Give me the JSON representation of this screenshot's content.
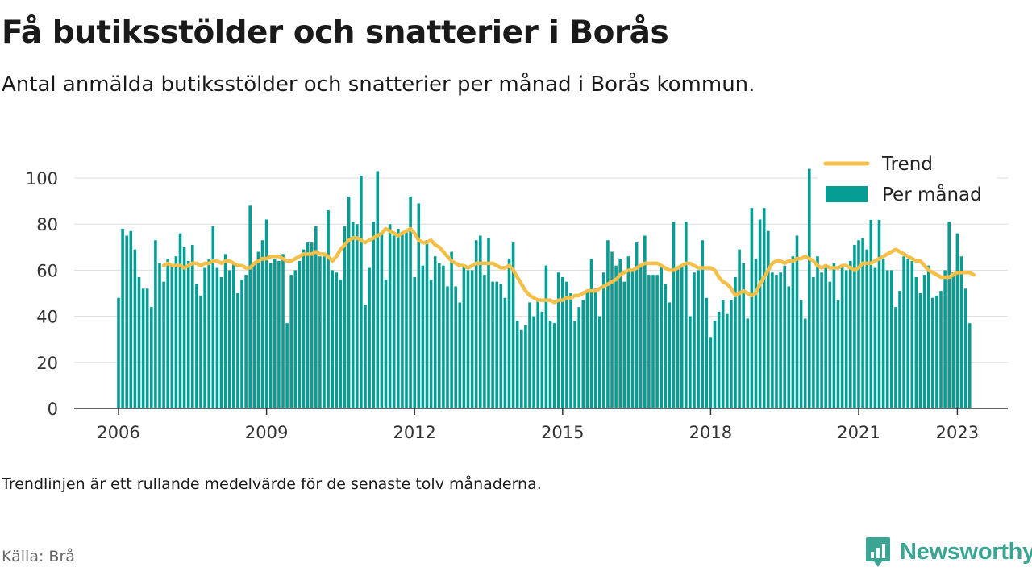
{
  "header": {
    "title": "Få butiksstölder och snatterier i Borås",
    "subtitle": "Antal anmälda butiksstölder och snatterier per månad i Borås kommun."
  },
  "footer": {
    "note": "Trendlinjen är ett rullande medelvärde för de senaste tolv månaderna.",
    "source": "Källa: Brå",
    "brand": "Newsworthy"
  },
  "colors": {
    "bar": "#069e94",
    "trend": "#f5c04a",
    "grid": "#dddddd",
    "axis": "#333333",
    "brand": "#3aa593"
  },
  "icons": {
    "brand_logo": "newsworthy-logo-icon"
  },
  "chart_data": {
    "type": "bar",
    "start": "2006-01",
    "x_tick_labels": [
      "2006",
      "2009",
      "2012",
      "2015",
      "2018",
      "2021",
      "2023"
    ],
    "y_ticks": [
      0,
      20,
      40,
      60,
      80,
      100
    ],
    "ylim": [
      0,
      105
    ],
    "legend": {
      "position": "top-right",
      "entries": [
        "Trend",
        "Per månad"
      ]
    },
    "grid": true,
    "series": [
      {
        "name": "Per månad",
        "type": "bar",
        "values": [
          48,
          78,
          75,
          77,
          69,
          57,
          52,
          52,
          44,
          73,
          63,
          55,
          65,
          62,
          66,
          76,
          70,
          64,
          71,
          54,
          49,
          61,
          65,
          79,
          61,
          57,
          67,
          60,
          63,
          50,
          56,
          58,
          88,
          63,
          68,
          73,
          82,
          63,
          65,
          64,
          67,
          37,
          58,
          60,
          64,
          69,
          72,
          72,
          79,
          66,
          66,
          86,
          60,
          59,
          56,
          79,
          92,
          81,
          80,
          101,
          45,
          61,
          81,
          103,
          76,
          56,
          80,
          75,
          78,
          76,
          77,
          92,
          57,
          89,
          62,
          73,
          56,
          66,
          63,
          62,
          53,
          68,
          53,
          46,
          62,
          60,
          60,
          73,
          75,
          58,
          74,
          55,
          55,
          54,
          48,
          65,
          72,
          38,
          34,
          36,
          46,
          40,
          47,
          42,
          62,
          38,
          37,
          59,
          57,
          55,
          50,
          38,
          44,
          47,
          51,
          65,
          52,
          40,
          59,
          73,
          68,
          62,
          65,
          55,
          66,
          60,
          72,
          62,
          75,
          58,
          58,
          58,
          62,
          54,
          46,
          81,
          61,
          62,
          81,
          40,
          59,
          60,
          73,
          48,
          31,
          38,
          42,
          47,
          41,
          47,
          57,
          69,
          63,
          39,
          87,
          65,
          82,
          87,
          77,
          59,
          58,
          59,
          62,
          53,
          66,
          75,
          47,
          39,
          104,
          57,
          66,
          59,
          61,
          55,
          63,
          47,
          62,
          60,
          64,
          71,
          73,
          74,
          69,
          82,
          61,
          84,
          65,
          60,
          60,
          44,
          51,
          66,
          65,
          64,
          57,
          50,
          58,
          62,
          48,
          49,
          51,
          60,
          81,
          59,
          76,
          66,
          52,
          37
        ]
      },
      {
        "name": "Trend",
        "type": "line",
        "start": "2006-12",
        "values": [
          62,
          63,
          62,
          62,
          62,
          61,
          62,
          63,
          63,
          62,
          63,
          63,
          64,
          64,
          63,
          64,
          64,
          63,
          62,
          62,
          61,
          61,
          63,
          64,
          65,
          65,
          66,
          66,
          66,
          65,
          64,
          64,
          65,
          66,
          67,
          67,
          67,
          68,
          67,
          67,
          66,
          64,
          66,
          69,
          71,
          73,
          74,
          74,
          73,
          72,
          73,
          74,
          75,
          76,
          78,
          77,
          76,
          75,
          76,
          77,
          78,
          76,
          73,
          72,
          72,
          73,
          71,
          70,
          68,
          66,
          64,
          63,
          62,
          62,
          61,
          62,
          63,
          63,
          63,
          63,
          63,
          62,
          61,
          61,
          62,
          60,
          57,
          54,
          51,
          49,
          48,
          47,
          47,
          47,
          47,
          46,
          47,
          47,
          48,
          48,
          49,
          49,
          50,
          51,
          51,
          51,
          52,
          53,
          54,
          55,
          56,
          58,
          59,
          60,
          60,
          61,
          62,
          63,
          63,
          63,
          63,
          62,
          61,
          60,
          60,
          61,
          62,
          63,
          63,
          62,
          61,
          61,
          61,
          61,
          60,
          57,
          55,
          54,
          52,
          49,
          50,
          51,
          50,
          49,
          50,
          54,
          57,
          60,
          63,
          64,
          64,
          63,
          64,
          64,
          65,
          65,
          66,
          65,
          64,
          62,
          61,
          62,
          61,
          61,
          61,
          62,
          62,
          61,
          60,
          61,
          63,
          63,
          63,
          64,
          65,
          66,
          67,
          68,
          69,
          68,
          67,
          66,
          65,
          64,
          64,
          62,
          60,
          59,
          58,
          57,
          57,
          57,
          58,
          59,
          59,
          59,
          59,
          58
        ]
      }
    ]
  }
}
